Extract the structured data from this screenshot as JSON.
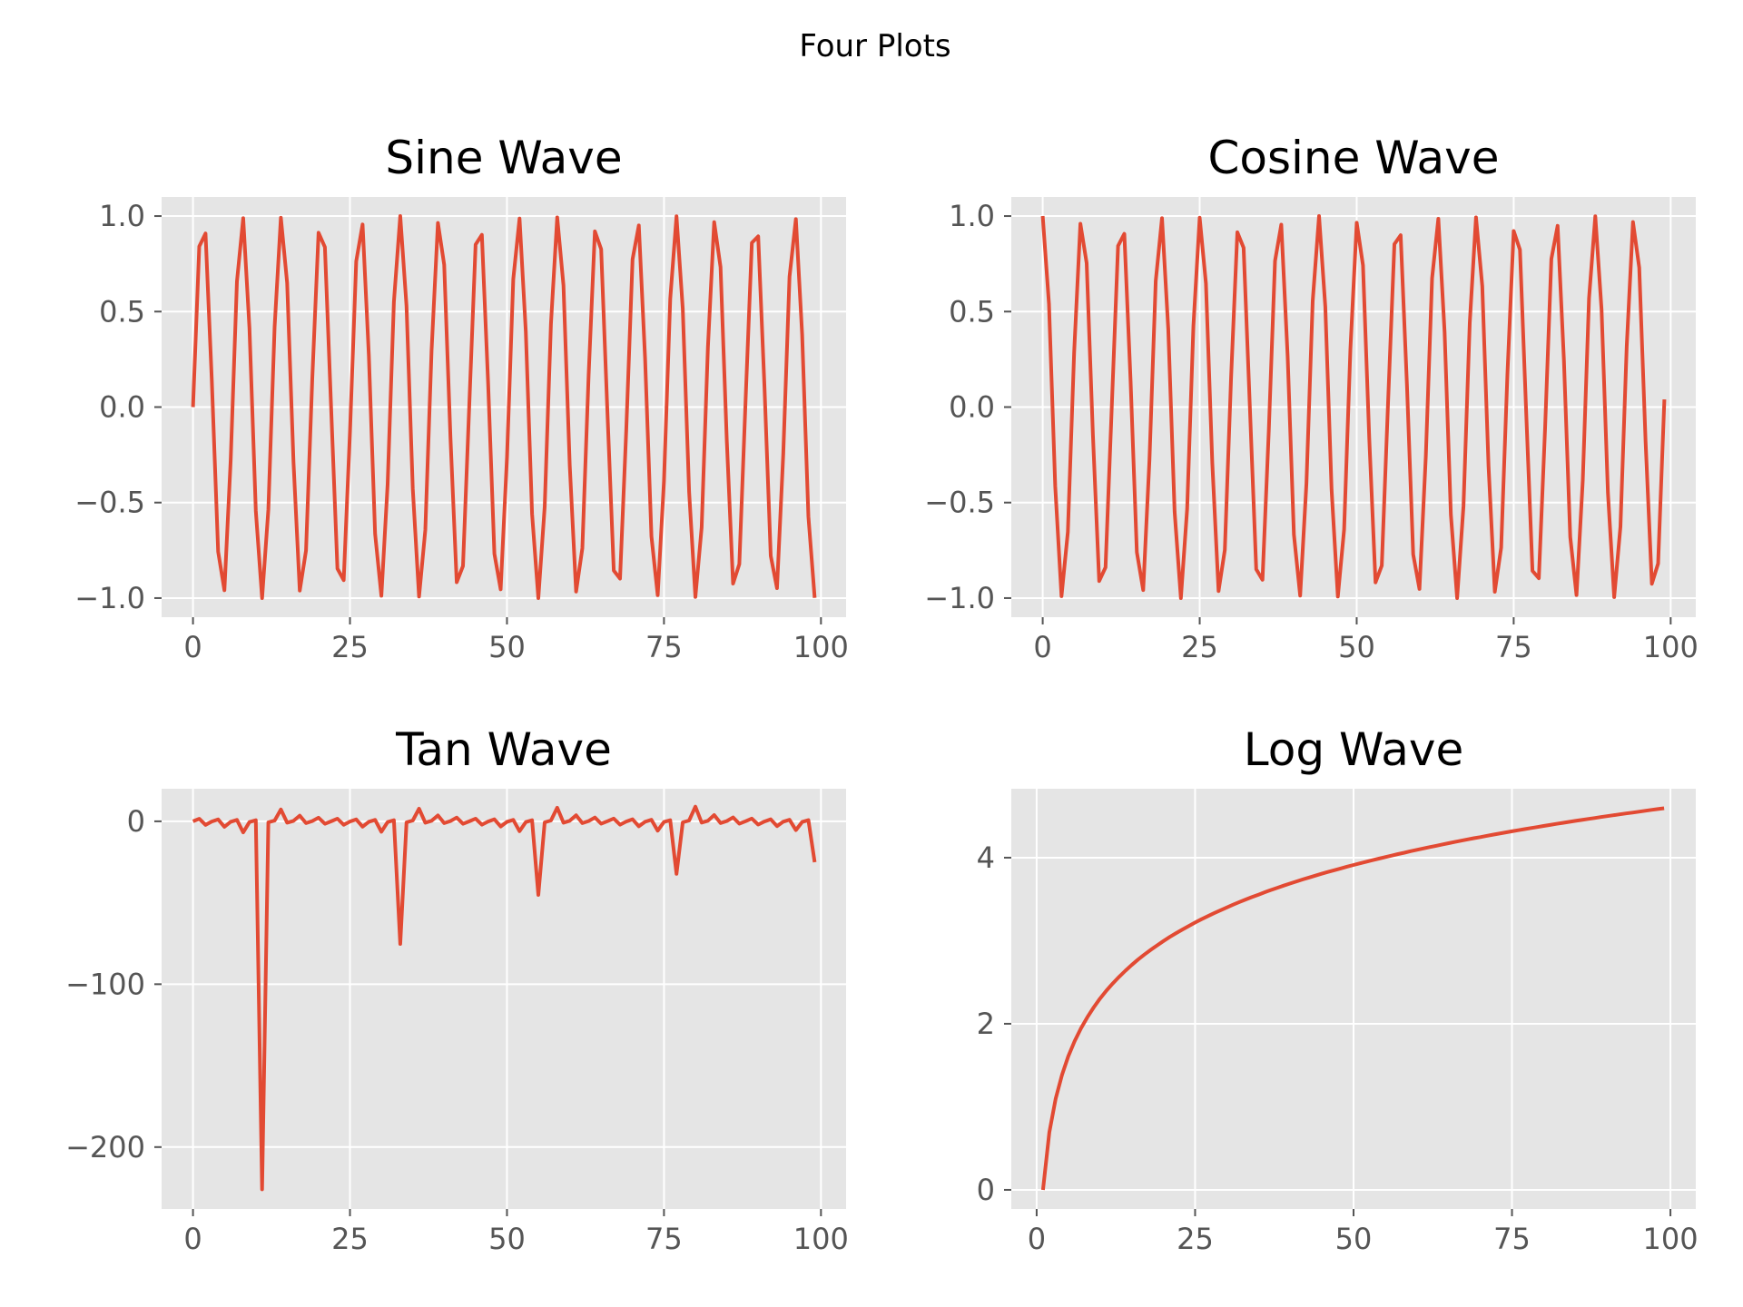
{
  "suptitle": "Four Plots",
  "style": {
    "panel_bg": "#e5e5e5",
    "grid": "#ffffff",
    "line": "#e24a33",
    "tick_text": "#555555",
    "title_text": "#000000"
  },
  "chart_data": [
    {
      "type": "line",
      "title": "Sine Wave",
      "xlabel": "",
      "ylabel": "",
      "xlim": [
        -5,
        104
      ],
      "ylim": [
        -1.1,
        1.1
      ],
      "xticks": [
        0,
        25,
        50,
        75,
        100
      ],
      "xtick_labels": [
        "0",
        "25",
        "50",
        "75",
        "100"
      ],
      "yticks": [
        1,
        0.5,
        0,
        -0.5,
        -1
      ],
      "ytick_labels": [
        "1.0",
        "0.5",
        "0.0",
        "−0.5",
        "−1.0"
      ],
      "grid": true,
      "series": [
        {
          "x": "0..99 step 1",
          "values": [
            0.0,
            0.841,
            0.909,
            0.141,
            -0.757,
            -0.959,
            -0.279,
            0.657,
            0.989,
            0.412,
            -0.544,
            -1.0,
            -0.537,
            0.42,
            0.991,
            0.65,
            -0.288,
            -0.961,
            -0.751,
            0.15,
            0.913,
            0.837,
            -0.009,
            -0.846,
            -0.906,
            -0.132,
            0.763,
            0.956,
            0.271,
            -0.664,
            -0.988,
            -0.404,
            0.551,
            1.0,
            0.529,
            -0.428,
            -0.992,
            -0.644,
            0.296,
            0.964,
            0.745,
            -0.159,
            -0.917,
            -0.832,
            0.018,
            0.851,
            0.902,
            0.124,
            -0.768,
            -0.954,
            -0.262,
            0.67,
            0.987,
            0.396,
            -0.559,
            -1.0,
            -0.522,
            0.436,
            0.993,
            0.637,
            -0.305,
            -0.966,
            -0.739,
            0.167,
            0.92,
            0.827,
            -0.027,
            -0.856,
            -0.898,
            -0.115,
            0.774,
            0.951,
            0.254,
            -0.677,
            -0.985,
            -0.388,
            0.566,
            0.999,
            0.514,
            -0.444,
            -0.994,
            -0.63,
            0.313,
            0.968,
            0.733,
            -0.176,
            -0.924,
            -0.822,
            0.035,
            0.86,
            0.894,
            0.106,
            -0.779,
            -0.948,
            -0.245,
            0.683,
            0.984,
            0.38,
            -0.573,
            -0.999
          ]
        }
      ]
    },
    {
      "type": "line",
      "title": "Cosine Wave",
      "xlabel": "",
      "ylabel": "",
      "xlim": [
        -5,
        104
      ],
      "ylim": [
        -1.1,
        1.1
      ],
      "xticks": [
        0,
        25,
        50,
        75,
        100
      ],
      "xtick_labels": [
        "0",
        "25",
        "50",
        "75",
        "100"
      ],
      "yticks": [
        1,
        0.5,
        0,
        -0.5,
        -1
      ],
      "ytick_labels": [
        "1.0",
        "0.5",
        "0.0",
        "−0.5",
        "−1.0"
      ],
      "grid": true,
      "series": [
        {
          "x": "0..99 step 1",
          "values": [
            1.0,
            0.54,
            -0.416,
            -0.99,
            -0.654,
            0.284,
            0.96,
            0.754,
            -0.146,
            -0.911,
            -0.839,
            0.004,
            0.844,
            0.907,
            0.137,
            -0.76,
            -0.958,
            -0.275,
            0.66,
            0.989,
            0.408,
            -0.548,
            -1.0,
            -0.533,
            0.424,
            0.991,
            0.647,
            -0.292,
            -0.963,
            -0.748,
            0.154,
            0.915,
            0.834,
            -0.013,
            -0.849,
            -0.904,
            -0.128,
            0.765,
            0.955,
            0.267,
            -0.667,
            -0.987,
            -0.4,
            0.555,
            1.0,
            0.525,
            -0.432,
            -0.992,
            -0.641,
            0.3,
            0.965,
            0.742,
            -0.163,
            -0.918,
            -0.83,
            0.022,
            0.853,
            0.9,
            0.119,
            -0.771,
            -0.952,
            -0.258,
            0.674,
            0.986,
            0.392,
            -0.562,
            -1.0,
            -0.518,
            0.44,
            0.993,
            0.633,
            -0.309,
            -0.967,
            -0.736,
            0.172,
            0.922,
            0.824,
            -0.031,
            -0.857,
            -0.896,
            -0.11,
            0.776,
            0.949,
            0.249,
            -0.68,
            -0.984,
            -0.384,
            0.57,
            0.999,
            0.51,
            -0.448,
            -0.995,
            -0.626,
            0.317,
            0.969,
            0.73,
            -0.18,
            -0.925,
            -0.819,
            0.04
          ]
        }
      ]
    },
    {
      "type": "line",
      "title": "Tan Wave",
      "xlabel": "",
      "ylabel": "",
      "xlim": [
        -5,
        104
      ],
      "ylim": [
        -238,
        20
      ],
      "xticks": [
        0,
        25,
        50,
        75,
        100
      ],
      "xtick_labels": [
        "0",
        "25",
        "50",
        "75",
        "100"
      ],
      "yticks": [
        0,
        -100,
        -200
      ],
      "ytick_labels": [
        "0",
        "−100",
        "−200"
      ],
      "grid": true,
      "series": [
        {
          "x": "0..99 step 1",
          "values": [
            0.0,
            1.557,
            -2.185,
            -0.143,
            1.158,
            -3.381,
            -0.291,
            0.871,
            -6.8,
            -0.452,
            0.648,
            -225.951,
            -0.636,
            0.463,
            7.245,
            -0.856,
            0.301,
            3.494,
            -1.137,
            0.151,
            2.237,
            -1.528,
            0.009,
            1.588,
            -2.135,
            -0.134,
            1.18,
            -3.274,
            -0.282,
            0.887,
            -6.405,
            -0.441,
            0.661,
            -75.313,
            -0.623,
            0.474,
            7.75,
            -0.839,
            0.31,
            3.61,
            -1.117,
            0.16,
            2.291,
            -1.498,
            0.018,
            1.62,
            -2.087,
            -0.124,
            1.203,
            -3.17,
            -0.272,
            0.903,
            -6.053,
            -0.43,
            0.674,
            -45.183,
            -0.612,
            0.485,
            8.334,
            -0.826,
            0.32,
            3.733,
            -1.098,
            0.169,
            2.347,
            -1.469,
            0.027,
            1.65,
            -2.04,
            -0.116,
            1.225,
            -3.076,
            -0.263,
            0.92,
            -5.727,
            -0.419,
            0.687,
            -32.268,
            -0.599,
            0.496,
            9.004,
            -0.811,
            0.329,
            3.864,
            -1.079,
            0.178,
            2.404,
            -1.44,
            0.036,
            1.683,
            -1.996,
            -0.107,
            1.249,
            -2.985,
            -0.253,
            0.937,
            -5.431,
            -0.409,
            0.7,
            -25.095
          ]
        }
      ]
    },
    {
      "type": "line",
      "title": "Log Wave",
      "xlabel": "",
      "ylabel": "",
      "xlim": [
        -4,
        104
      ],
      "ylim": [
        -0.23,
        4.83
      ],
      "xticks": [
        0,
        25,
        50,
        75,
        100
      ],
      "xtick_labels": [
        "0",
        "25",
        "50",
        "75",
        "100"
      ],
      "yticks": [
        4,
        2,
        0
      ],
      "ytick_labels": [
        "4",
        "2",
        "0"
      ],
      "grid": true,
      "series": [
        {
          "x": "1..99 step 1",
          "values": [
            0.0,
            0.693,
            1.099,
            1.386,
            1.609,
            1.792,
            1.946,
            2.079,
            2.197,
            2.303,
            2.398,
            2.485,
            2.565,
            2.639,
            2.708,
            2.773,
            2.833,
            2.89,
            2.944,
            2.996,
            3.045,
            3.091,
            3.135,
            3.178,
            3.219,
            3.258,
            3.296,
            3.332,
            3.367,
            3.401,
            3.434,
            3.466,
            3.497,
            3.526,
            3.555,
            3.584,
            3.611,
            3.638,
            3.664,
            3.689,
            3.714,
            3.738,
            3.761,
            3.784,
            3.807,
            3.829,
            3.85,
            3.871,
            3.892,
            3.912,
            3.932,
            3.951,
            3.97,
            3.989,
            4.007,
            4.025,
            4.043,
            4.06,
            4.078,
            4.094,
            4.111,
            4.127,
            4.143,
            4.159,
            4.174,
            4.19,
            4.205,
            4.22,
            4.234,
            4.248,
            4.263,
            4.277,
            4.29,
            4.304,
            4.317,
            4.331,
            4.344,
            4.357,
            4.369,
            4.382,
            4.394,
            4.407,
            4.419,
            4.431,
            4.443,
            4.454,
            4.466,
            4.477,
            4.489,
            4.5,
            4.511,
            4.522,
            4.533,
            4.543,
            4.554,
            4.564,
            4.575,
            4.585,
            4.595
          ]
        }
      ]
    }
  ]
}
